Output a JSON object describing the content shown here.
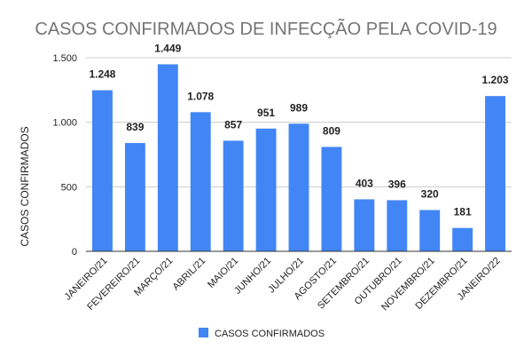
{
  "chart_data": {
    "type": "bar",
    "title": "CASOS CONFIRMADOS DE INFECÇÃO PELA COVID-19",
    "xlabel": "",
    "ylabel": "CASOS CONFIRMADOS",
    "categories": [
      "JANEIRO/21",
      "FEVEREIRO/21",
      "MARÇO/21",
      "ABRIL/21",
      "MAIO/21",
      "JUNHO/21",
      "JULHO/21",
      "AGOSTO/21",
      "SETEMBRO/21",
      "OUTUBRO/21",
      "NOVEMBRO/21",
      "DEZEMBRO/21",
      "JANEIRO/22"
    ],
    "series": [
      {
        "name": "CASOS CONFIRMADOS",
        "values": [
          1248,
          839,
          1449,
          1078,
          857,
          951,
          989,
          809,
          403,
          396,
          320,
          181,
          1203
        ],
        "labels": [
          "1.248",
          "839",
          "1.449",
          "1.078",
          "857",
          "951",
          "989",
          "809",
          "403",
          "396",
          "320",
          "181",
          "1.203"
        ],
        "color": "#4285f4"
      }
    ],
    "ylim": [
      0,
      1500
    ],
    "yticks": [
      0,
      500,
      1000,
      1500
    ],
    "ytick_labels": [
      "0",
      "500",
      "1.000",
      "1.500"
    ],
    "grid": true,
    "legend": "bottom"
  }
}
